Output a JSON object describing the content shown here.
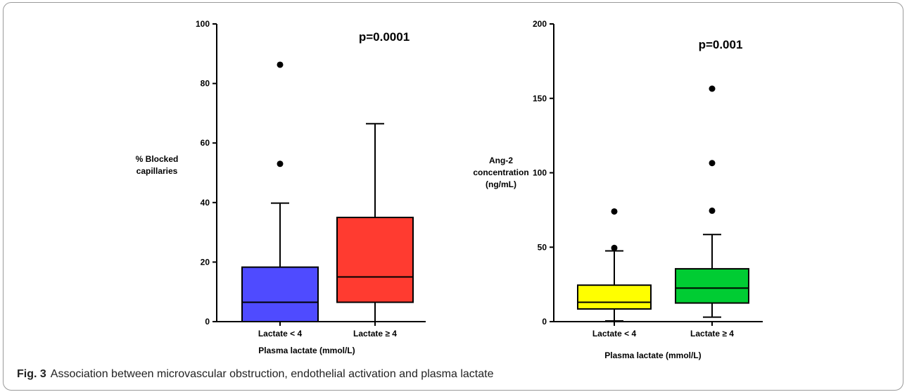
{
  "figure": {
    "caption_label": "Fig. 3",
    "caption_text": "Association between microvascular obstruction, endothelial activation and plasma lactate"
  },
  "chart_data": [
    {
      "type": "box",
      "title": "",
      "annotation": "p=0.0001",
      "ylabel": "% Blocked capillaries",
      "xlabel": "Plasma lactate (mmol/L)",
      "ylim": [
        0,
        100
      ],
      "yticks": [
        "0",
        "20",
        "40",
        "60",
        "80",
        "100"
      ],
      "grid": false,
      "categories": [
        "Lactate < 4",
        "Lactate ≥ 4"
      ],
      "colors": [
        "#4f4bff",
        "#ff3b30"
      ],
      "boxes": [
        {
          "min": 0,
          "q1": 0,
          "median": 6.5,
          "q3": 18.3,
          "max": 39.8,
          "outliers": [
            53,
            86.3
          ]
        },
        {
          "min": 0,
          "q1": 6.5,
          "median": 15,
          "q3": 35,
          "max": 66.5,
          "outliers": []
        }
      ]
    },
    {
      "type": "box",
      "title": "",
      "annotation": "p=0.001",
      "ylabel": "Ang-2 concentration (ng/mL)",
      "xlabel": "Plasma lactate (mmol/L)",
      "ylim": [
        0,
        200
      ],
      "yticks": [
        "0",
        "50",
        "100",
        "150",
        "200"
      ],
      "grid": false,
      "categories": [
        "Lactate < 4",
        "Lactate ≥ 4"
      ],
      "colors": [
        "#ffff00",
        "#00cc33"
      ],
      "boxes": [
        {
          "min": 0.5,
          "q1": 8.5,
          "median": 13,
          "q3": 24.5,
          "max": 47.5,
          "outliers": [
            49.5,
            74
          ]
        },
        {
          "min": 3,
          "q1": 12.5,
          "median": 22.5,
          "q3": 35.5,
          "max": 58.5,
          "outliers": [
            74.5,
            106.5,
            156.5
          ]
        }
      ]
    }
  ]
}
